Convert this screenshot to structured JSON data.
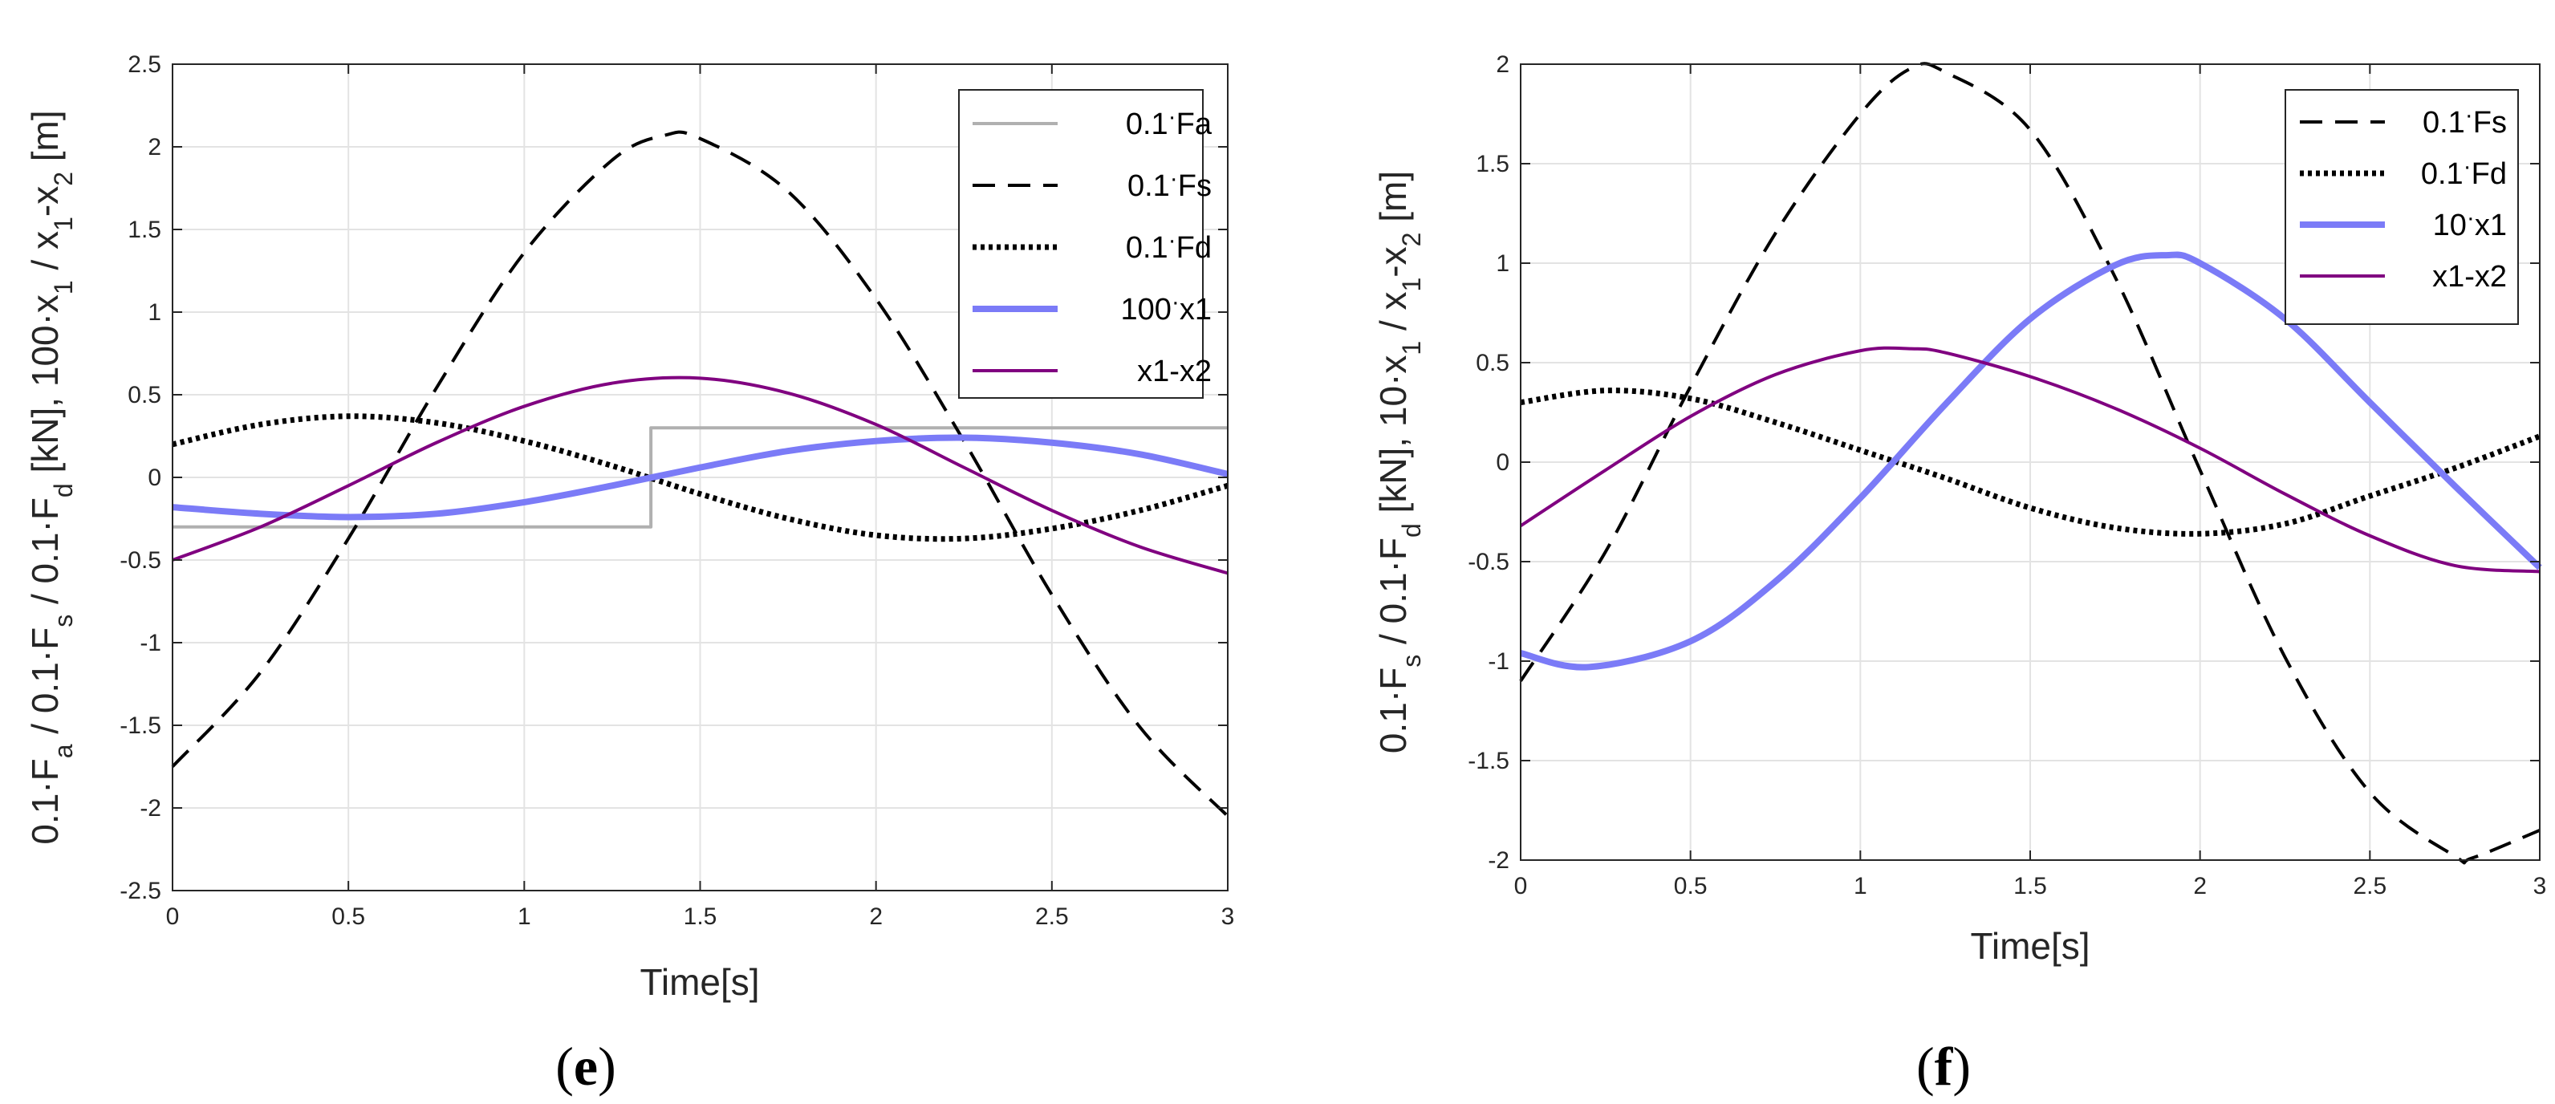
{
  "chart_data": [
    {
      "type": "line",
      "panel_label": {
        "open": "(",
        "letter": "e",
        "close": ")"
      },
      "xlabel": "Time[s]",
      "ylabel": "0.1·F_a / 0.1·F_s / 0.1·F_d [kN], 100·x_1 / x_1-x_2 [m]",
      "xlim": [
        0,
        3
      ],
      "ylim": [
        -2.5,
        2.5
      ],
      "xticks": [
        0,
        0.5,
        1,
        1.5,
        2,
        2.5,
        3
      ],
      "xtick_labels": [
        "0",
        "0.5",
        "1",
        "1.5",
        "2",
        "2.5",
        "3"
      ],
      "yticks": [
        -2.5,
        -2,
        -1.5,
        -1,
        -0.5,
        0,
        0.5,
        1,
        1.5,
        2,
        2.5
      ],
      "ytick_labels": [
        "-2.5",
        "-2",
        "-1.5",
        "-1",
        "-0.5",
        "0",
        "0.5",
        "1",
        "1.5",
        "2",
        "2.5"
      ],
      "grid": true,
      "legend_position": "top-right",
      "series": [
        {
          "name": "0.1·Fa",
          "legend": {
            "pre": "0.1",
            "dot": "·",
            "post": "Fa"
          },
          "color": "#b0b0b0",
          "style": "solid",
          "width": 4,
          "x": [
            0,
            1.36,
            1.36,
            3
          ],
          "y": [
            -0.3,
            -0.3,
            0.3,
            0.3
          ]
        },
        {
          "name": "0.1·Fs",
          "legend": {
            "pre": "0.1",
            "dot": "·",
            "post": "Fs"
          },
          "color": "#000000",
          "style": "dashed",
          "width": 4,
          "x": [
            0,
            0.25,
            0.5,
            0.75,
            1.0,
            1.25,
            1.4,
            1.5,
            1.75,
            2.0,
            2.25,
            2.5,
            2.75,
            3.0
          ],
          "y": [
            -1.75,
            -1.18,
            -0.37,
            0.54,
            1.36,
            1.92,
            2.07,
            2.05,
            1.73,
            1.08,
            0.22,
            -0.71,
            -1.51,
            -2.05
          ]
        },
        {
          "name": "0.1·Fd",
          "legend": {
            "pre": "0.1",
            "dot": "·",
            "post": "Fd"
          },
          "color": "#000000",
          "style": "dotted",
          "width": 7,
          "x": [
            0,
            0.25,
            0.5,
            0.75,
            1.0,
            1.25,
            1.5,
            1.75,
            2.0,
            2.25,
            2.5,
            2.75,
            3.0
          ],
          "y": [
            0.2,
            0.32,
            0.37,
            0.33,
            0.22,
            0.07,
            -0.1,
            -0.25,
            -0.35,
            -0.37,
            -0.31,
            -0.2,
            -0.05
          ]
        },
        {
          "name": "100·x1",
          "legend": {
            "pre": "100",
            "dot": "·",
            "post": "x1"
          },
          "color": "#7b7bf7",
          "style": "solid",
          "width": 8,
          "x": [
            0,
            0.25,
            0.5,
            0.75,
            1.0,
            1.25,
            1.5,
            1.75,
            2.0,
            2.25,
            2.5,
            2.75,
            3.0
          ],
          "y": [
            -0.18,
            -0.22,
            -0.24,
            -0.22,
            -0.15,
            -0.05,
            0.06,
            0.16,
            0.22,
            0.24,
            0.21,
            0.14,
            0.02
          ]
        },
        {
          "name": "x1-x2",
          "legend": {
            "pre": "x1-x2",
            "dot": "",
            "post": ""
          },
          "color": "#800080",
          "style": "solid",
          "width": 4,
          "x": [
            0,
            0.25,
            0.5,
            0.75,
            1.0,
            1.25,
            1.5,
            1.75,
            2.0,
            2.25,
            2.5,
            2.75,
            3.0
          ],
          "y": [
            -0.5,
            -0.3,
            -0.05,
            0.21,
            0.43,
            0.57,
            0.6,
            0.51,
            0.32,
            0.06,
            -0.2,
            -0.42,
            -0.58
          ]
        }
      ]
    },
    {
      "type": "line",
      "panel_label": {
        "open": "(",
        "letter": "f",
        "close": ")"
      },
      "xlabel": "Time[s]",
      "ylabel": "0.1·F_s / 0.1·F_d [kN], 10·x_1 / x_1-x_2 [m]",
      "xlim": [
        0,
        3
      ],
      "ylim": [
        -2,
        2
      ],
      "xticks": [
        0,
        0.5,
        1,
        1.5,
        2,
        2.5,
        3
      ],
      "xtick_labels": [
        "0",
        "0.5",
        "1",
        "1.5",
        "2",
        "2.5",
        "3"
      ],
      "yticks": [
        -2,
        -1.5,
        -1,
        -0.5,
        0,
        0.5,
        1,
        1.5,
        2
      ],
      "ytick_labels": [
        "-2",
        "-1.5",
        "-1",
        "-0.5",
        "0",
        "0.5",
        "1",
        "1.5",
        "2"
      ],
      "grid": true,
      "legend_position": "top-right",
      "series": [
        {
          "name": "0.1·Fs",
          "legend": {
            "pre": "0.1",
            "dot": "·",
            "post": "Fs"
          },
          "color": "#000000",
          "style": "dashed",
          "width": 4,
          "x": [
            0,
            0.25,
            0.5,
            0.75,
            1.0,
            1.15,
            1.25,
            1.5,
            1.75,
            2.0,
            2.25,
            2.5,
            2.75,
            2.8,
            3.0
          ],
          "y": [
            -1.1,
            -0.45,
            0.38,
            1.15,
            1.75,
            1.98,
            1.96,
            1.67,
            0.93,
            -0.04,
            -0.98,
            -1.66,
            -1.98,
            -1.99,
            -1.85
          ]
        },
        {
          "name": "0.1·Fd",
          "legend": {
            "pre": "0.1",
            "dot": "·",
            "post": "Fd"
          },
          "color": "#000000",
          "style": "dotted",
          "width": 7,
          "x": [
            0,
            0.25,
            0.5,
            0.75,
            1.0,
            1.25,
            1.5,
            1.75,
            2.0,
            2.25,
            2.5,
            2.75,
            3.0
          ],
          "y": [
            0.3,
            0.36,
            0.32,
            0.2,
            0.06,
            -0.08,
            -0.23,
            -0.33,
            -0.36,
            -0.31,
            -0.17,
            -0.03,
            0.13
          ]
        },
        {
          "name": "10·x1",
          "legend": {
            "pre": "10",
            "dot": "·",
            "post": "x1"
          },
          "color": "#7b7bf7",
          "style": "solid",
          "width": 8,
          "x": [
            0,
            0.2,
            0.5,
            0.75,
            1.0,
            1.25,
            1.5,
            1.75,
            1.9,
            2.0,
            2.25,
            2.5,
            2.75,
            3.0
          ],
          "y": [
            -0.96,
            -1.03,
            -0.9,
            -0.6,
            -0.18,
            0.29,
            0.72,
            0.99,
            1.04,
            1.0,
            0.72,
            0.3,
            -0.12,
            -0.53
          ]
        },
        {
          "name": "x1-x2",
          "legend": {
            "pre": "x1-x2",
            "dot": "",
            "post": ""
          },
          "color": "#800080",
          "style": "solid",
          "width": 4,
          "x": [
            0,
            0.25,
            0.5,
            0.75,
            1.0,
            1.15,
            1.25,
            1.5,
            1.75,
            2.0,
            2.25,
            2.5,
            2.75,
            3.0
          ],
          "y": [
            -0.32,
            -0.04,
            0.23,
            0.44,
            0.56,
            0.57,
            0.55,
            0.43,
            0.27,
            0.07,
            -0.16,
            -0.37,
            -0.52,
            -0.55
          ]
        }
      ]
    }
  ]
}
